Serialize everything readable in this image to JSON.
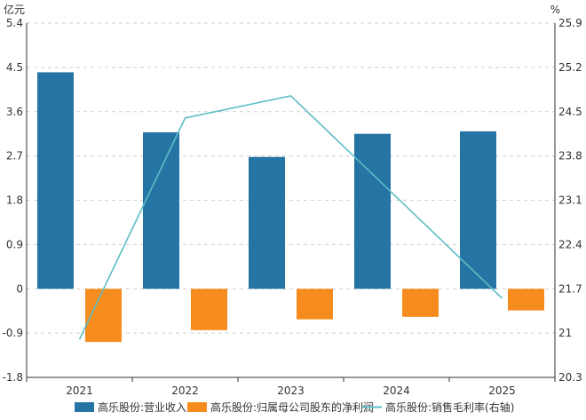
{
  "chart_data": {
    "type": "bar",
    "categories": [
      "2021",
      "2022",
      "2023",
      "2024",
      "2025"
    ],
    "left_axis": {
      "unit": "亿元",
      "ylim": [
        -1.8,
        5.4
      ],
      "ticks": [
        "5.4",
        "4.5",
        "3.6",
        "2.7",
        "1.8",
        "0.9",
        "0",
        "-0.9",
        "-1.8"
      ],
      "tick_values": [
        5.4,
        4.5,
        3.6,
        2.7,
        1.8,
        0.9,
        0,
        -0.9,
        -1.8
      ]
    },
    "right_axis": {
      "unit": "%",
      "ylim": [
        20.3,
        25.9
      ],
      "ticks": [
        "25.9",
        "25.2",
        "24.5",
        "23.8",
        "23.1",
        "22.4",
        "21.7",
        "21",
        "20.3"
      ],
      "tick_values": [
        25.9,
        25.2,
        24.5,
        23.8,
        23.1,
        22.4,
        21.7,
        21,
        20.3
      ]
    },
    "series": [
      {
        "name": "高乐股份:营业收入",
        "type": "bar",
        "axis": "left",
        "color": "#2574a4",
        "values": [
          4.4,
          3.18,
          2.68,
          3.15,
          3.2
        ]
      },
      {
        "name": "高乐股份:归属母公司股东的净利润",
        "type": "bar",
        "axis": "left",
        "color": "#f78c1e",
        "values": [
          -1.08,
          -0.84,
          -0.62,
          -0.57,
          -0.44
        ]
      },
      {
        "name": "高乐股份:销售毛利率(右轴)",
        "type": "line",
        "axis": "right",
        "color": "#5bbdc5",
        "values": [
          20.9,
          24.4,
          24.75,
          23.15,
          21.55
        ]
      }
    ],
    "grid": "horizontal-dashed",
    "legend": "bottom"
  }
}
